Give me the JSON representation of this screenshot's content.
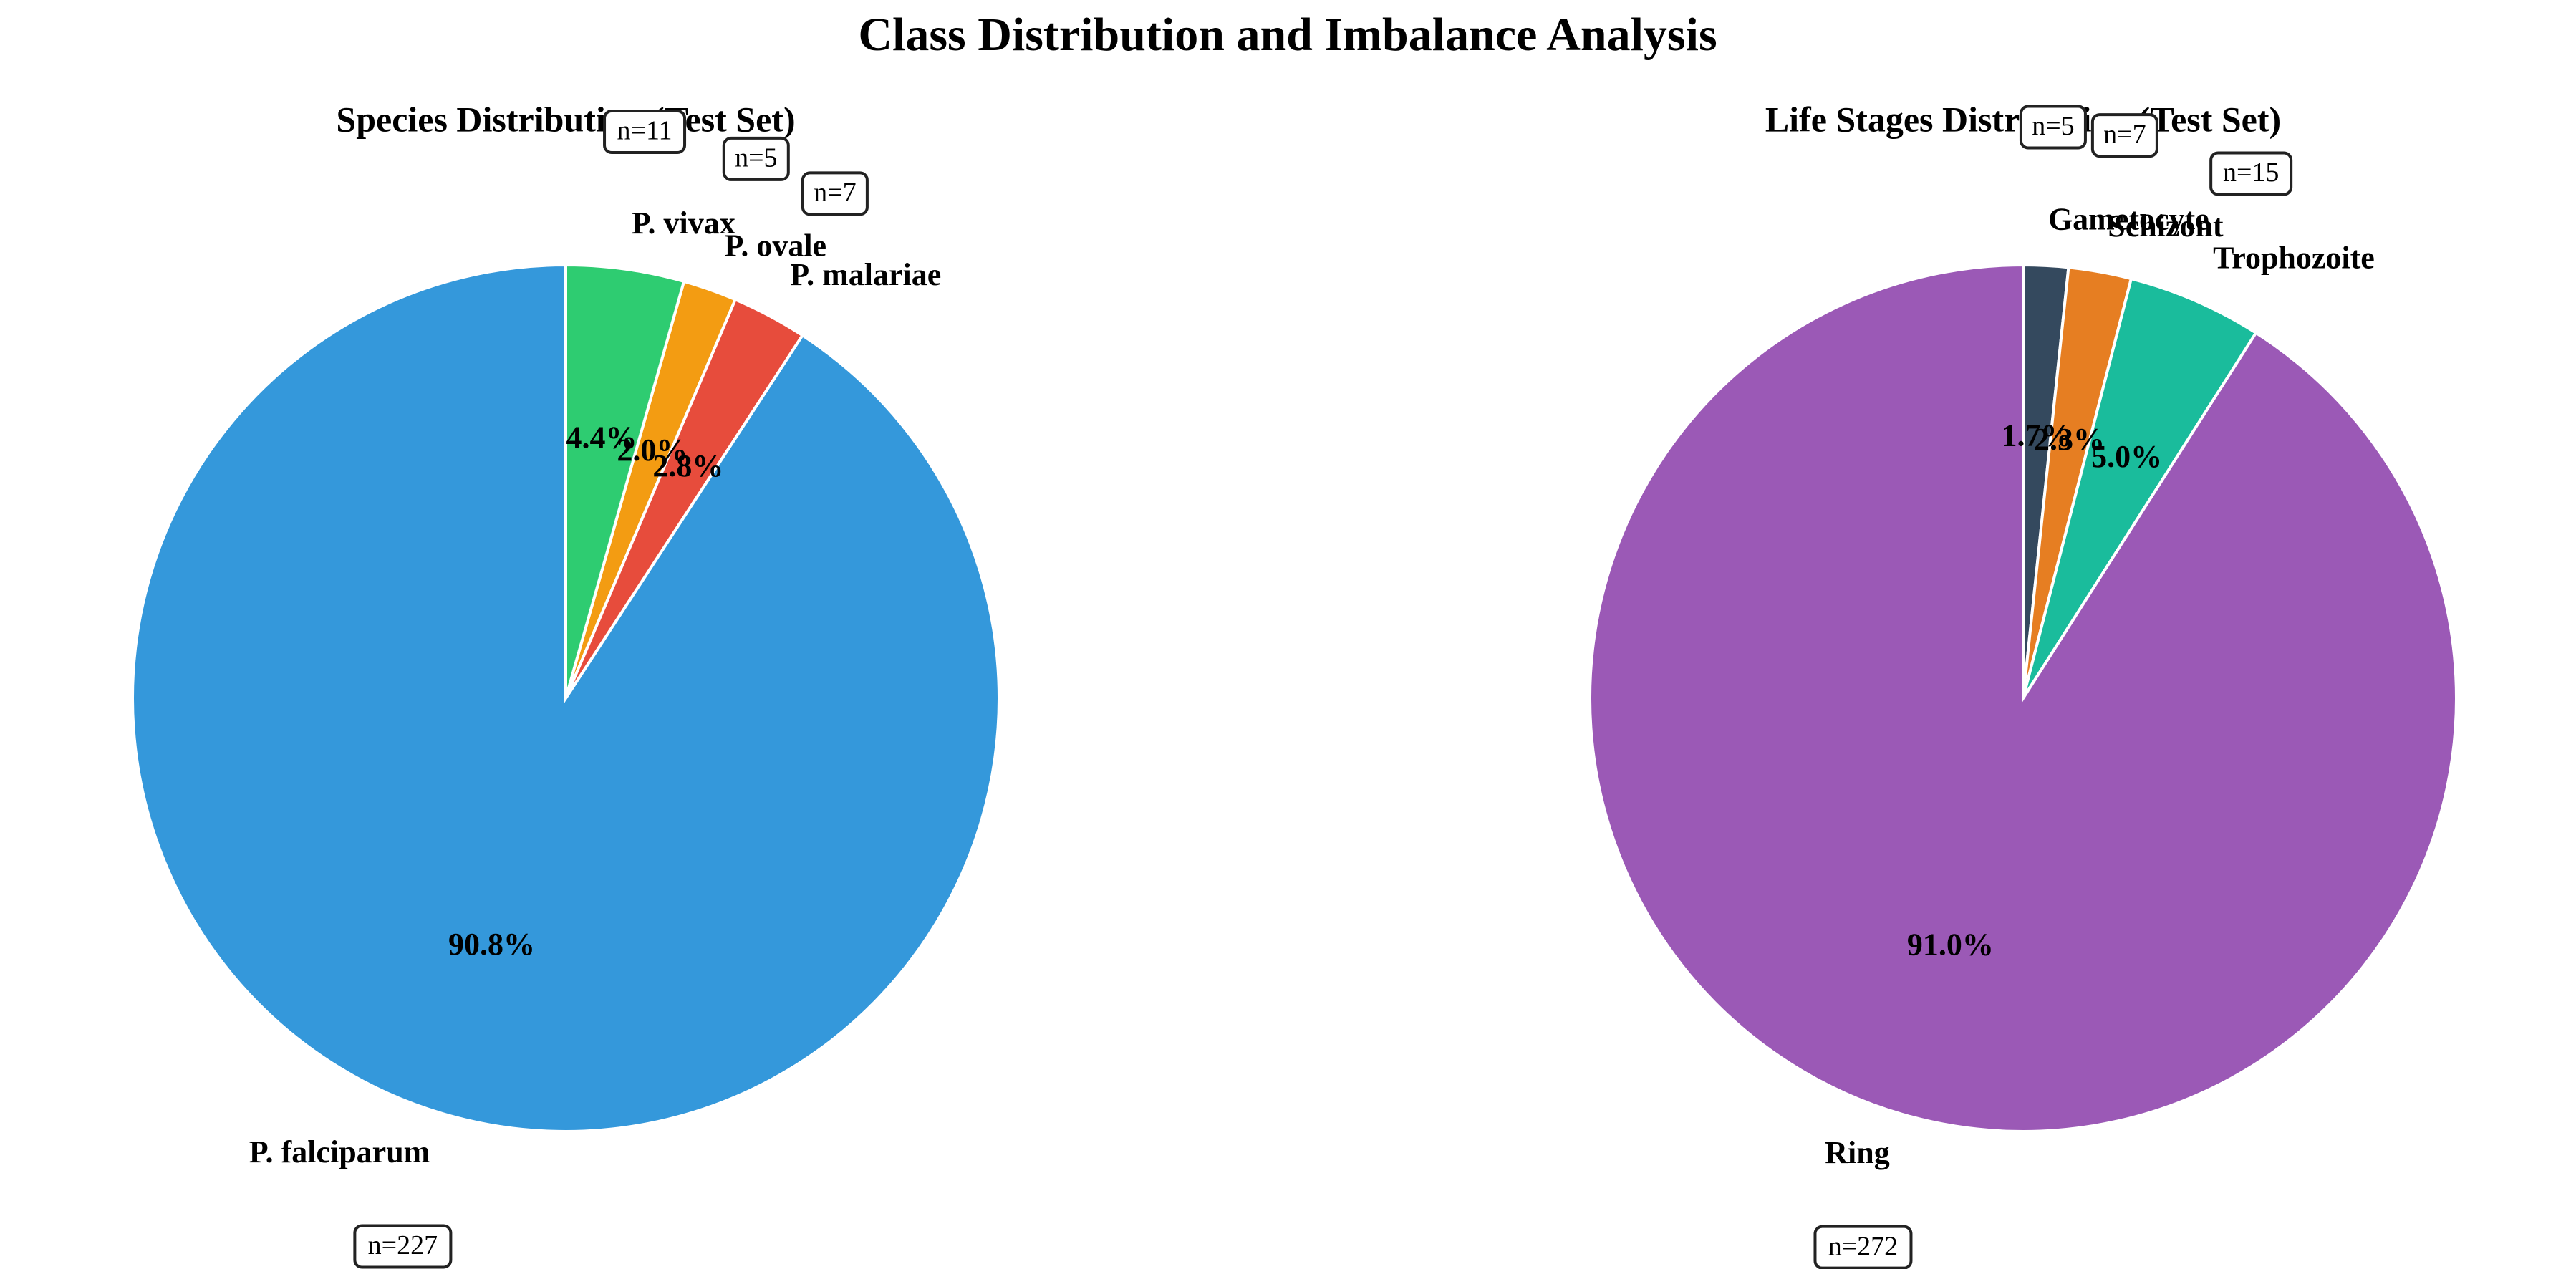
{
  "title": "Class Distribution and Imbalance Analysis",
  "count_prefix": "n=",
  "chart_data": [
    {
      "type": "pie",
      "title": "Species Distribution (Test Set)",
      "start_angle_deg": 90,
      "direction": "clockwise",
      "categories": [
        "P. falciparum",
        "P. vivax",
        "P. ovale",
        "P. malariae"
      ],
      "values": [
        227,
        11,
        5,
        7
      ],
      "percent_labels": [
        "90.8%",
        "4.4%",
        "2.0%",
        "2.8%"
      ],
      "colors": [
        "#3498db",
        "#2ecc71",
        "#f39c12",
        "#e74c3c"
      ]
    },
    {
      "type": "pie",
      "title": "Life Stages Distribution (Test Set)",
      "start_angle_deg": 90,
      "direction": "clockwise",
      "categories": [
        "Ring",
        "Gametocyte",
        "Schizont",
        "Trophozoite"
      ],
      "values": [
        272,
        5,
        7,
        15
      ],
      "percent_labels": [
        "91.0%",
        "1.7%",
        "2.3%",
        "5.0%"
      ],
      "colors": [
        "#9b59b6",
        "#34495e",
        "#e67e22",
        "#1abc9c"
      ]
    }
  ]
}
